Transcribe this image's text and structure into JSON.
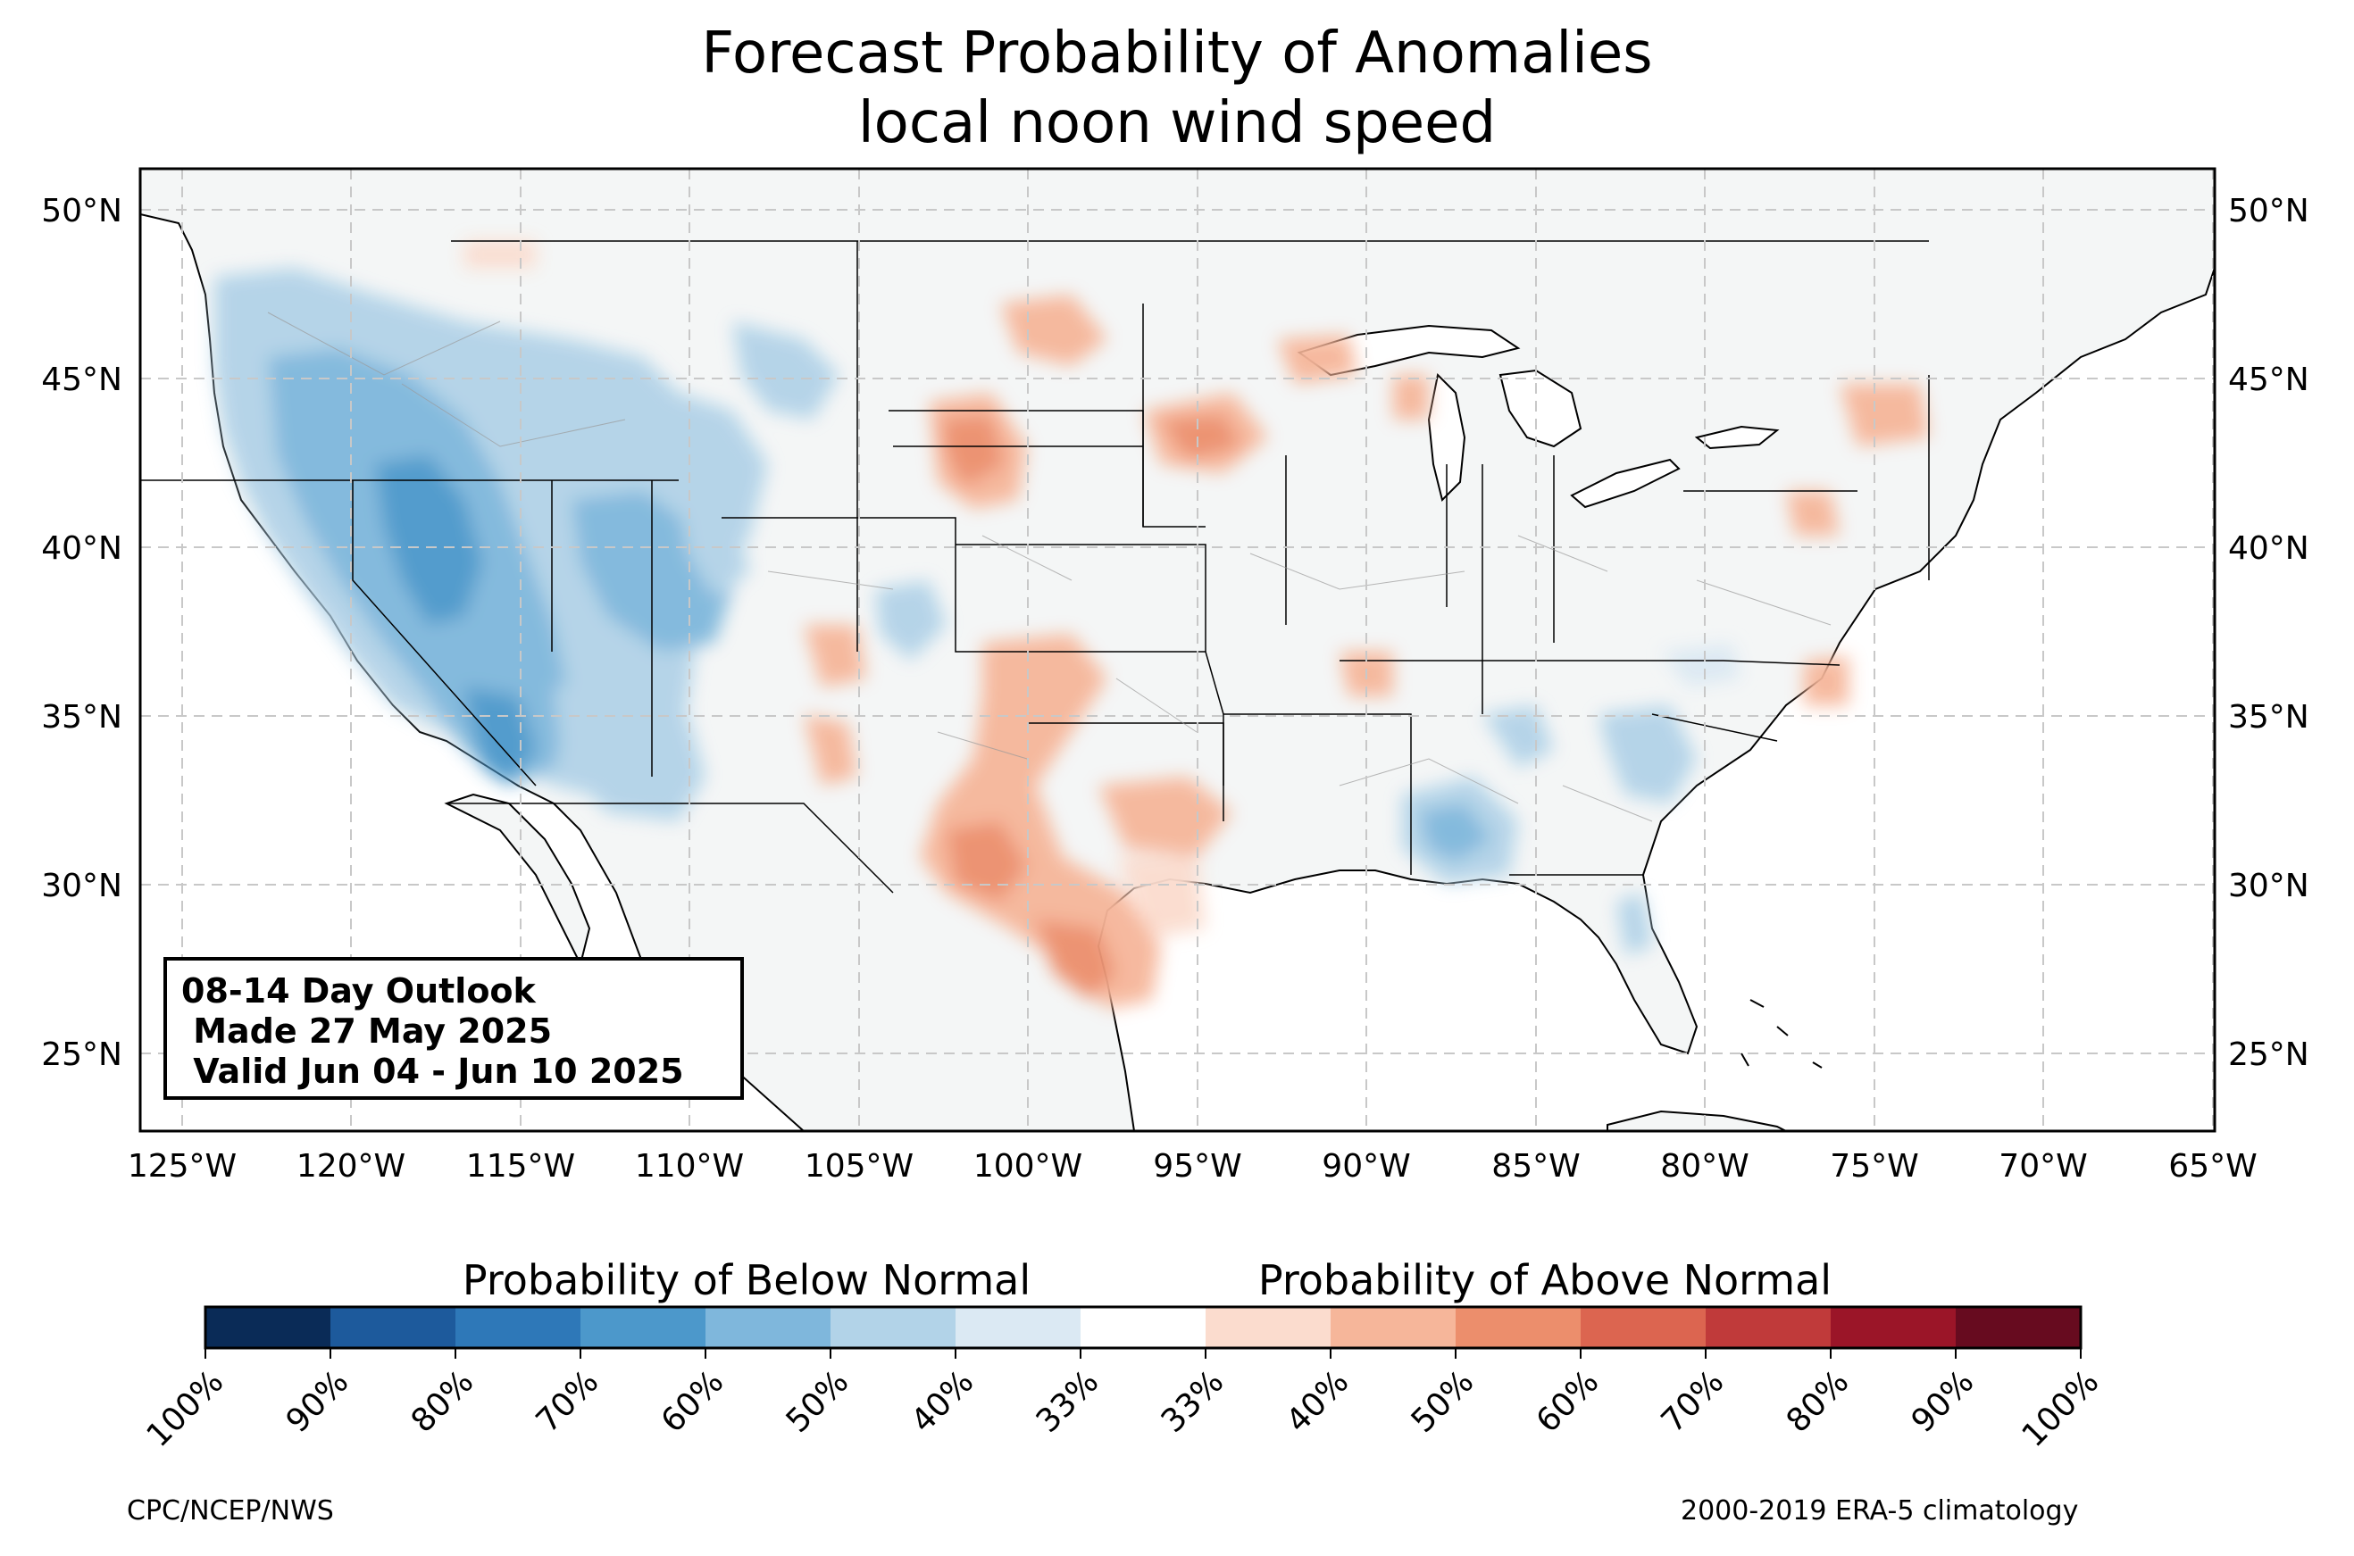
{
  "title_line1": "Forecast Probability of Anomalies",
  "title_line2": "local noon wind speed",
  "map": {
    "lon_labels": [
      "125°W",
      "120°W",
      "115°W",
      "110°W",
      "105°W",
      "100°W",
      "95°W",
      "90°W",
      "85°W",
      "80°W",
      "75°W",
      "70°W",
      "65°W"
    ],
    "lat_labels": [
      "50°N",
      "45°N",
      "40°N",
      "35°N",
      "30°N",
      "25°N"
    ],
    "lon_range": [
      -126.3,
      -64.9
    ],
    "lat_range": [
      22.8,
      51.3
    ],
    "land_color": "#f4f6f6",
    "grid_style": "dashed"
  },
  "infobox": {
    "line1": "08-14 Day Outlook",
    "line2": " Made 27 May 2025",
    "line3": " Valid Jun 04 - Jun 10 2025"
  },
  "colorbar": {
    "below_label": "Probability of Below Normal",
    "above_label": "Probability of Above Normal",
    "ticks": [
      "100%",
      "90%",
      "80%",
      "70%",
      "60%",
      "50%",
      "40%",
      "33%",
      "33%",
      "40%",
      "50%",
      "60%",
      "70%",
      "80%",
      "90%",
      "100%"
    ],
    "colors": [
      "#0a2b57",
      "#1d5a9c",
      "#2e78b8",
      "#4c98cb",
      "#7fb7dc",
      "#b2d3e8",
      "#dbe9f3",
      "#ffffff",
      "#fbdcce",
      "#f6b69a",
      "#ec8e6c",
      "#dc6550",
      "#c03a3a",
      "#9b1528",
      "#670b1f"
    ]
  },
  "footer": {
    "left": "CPC/NCEP/NWS",
    "right": "2000-2019 ERA-5 climatology"
  }
}
